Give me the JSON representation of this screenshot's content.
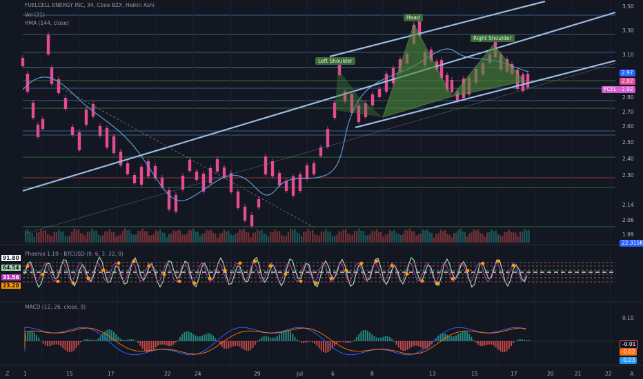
{
  "header": {
    "symbol_line": "FUELCELL ENERGY INC, 34, Cboe BZX, Heikin Ashi",
    "vol_line": "Vol (21)",
    "hma_line": "HMA (144, close)"
  },
  "pattern_labels": {
    "head": "Head",
    "left_shoulder": "Left Shoulder",
    "right_shoulder": "Right Shoulder"
  },
  "price_axis": {
    "ticks": [
      "3.50",
      "3.30",
      "3.10",
      "2.90",
      "2.80",
      "2.70",
      "2.60",
      "2.50",
      "2.40",
      "2.30",
      "2.14",
      "2.06",
      "1.99"
    ],
    "tag_hma": "2.97",
    "tag_price": "2.92",
    "tag_symbol": "FCEL",
    "tag_symbol_price": "2.92",
    "tag_volume": "22.315K"
  },
  "oscillator": {
    "title": "Phoenix 1.19 - BTCUSD (9, 6, 3, 32, 0)",
    "values": [
      "91.80",
      "64.54",
      "31.56",
      "23.20"
    ]
  },
  "macd": {
    "title": "MACD (12, 26, close, 9)",
    "tick": "0.10",
    "values": [
      "-0.01",
      "-0.02",
      "-0.03"
    ]
  },
  "time_axis": {
    "labels": [
      "1",
      "15",
      "17",
      "22",
      "24",
      "29",
      "Jul",
      "6",
      "8",
      "13",
      "15",
      "17",
      "20",
      "21",
      "22"
    ]
  },
  "footer": {
    "left_icon": "Z",
    "right_icon": "A"
  },
  "colors": {
    "bull": "#e64b92",
    "bear": "#e64b92",
    "hma": "#5b9bd5",
    "channel": "#9bbbe3",
    "pattern_fill": "#4a8a3a",
    "macd_line": "#2962ff",
    "signal_line": "#ff6d00"
  },
  "chart_data": [
    {
      "type": "candlestick",
      "title": "FUELCELL ENERGY INC, 34, Cboe BZX, Heikin Ashi",
      "series": [
        {
          "name": "FCEL",
          "approx_path": [
            {
              "x": "1",
              "y": 2.95
            },
            {
              "x": "1.5",
              "y": 3.05
            },
            {
              "x": "15",
              "y": 2.75
            },
            {
              "x": "17",
              "y": 2.55
            },
            {
              "x": "22",
              "y": 2.3
            },
            {
              "x": "22.5",
              "y": 2.2
            },
            {
              "x": "24",
              "y": 2.35
            },
            {
              "x": "29",
              "y": 2.05
            },
            {
              "x": "29.5",
              "y": 2.2
            },
            {
              "x": "Jul",
              "y": 2.4
            },
            {
              "x": "6",
              "y": 2.95
            },
            {
              "x": "8",
              "y": 2.75
            },
            {
              "x": "10",
              "y": 3.3
            },
            {
              "x": "13",
              "y": 2.8
            },
            {
              "x": "15",
              "y": 2.92
            },
            {
              "x": "16",
              "y": 3.15
            },
            {
              "x": "17",
              "y": 2.92
            }
          ]
        }
      ],
      "ylim": [
        1.99,
        3.5
      ],
      "last_price": 2.92,
      "annotations": [
        "Left Shoulder",
        "Head",
        "Right Shoulder"
      ]
    }
  ]
}
